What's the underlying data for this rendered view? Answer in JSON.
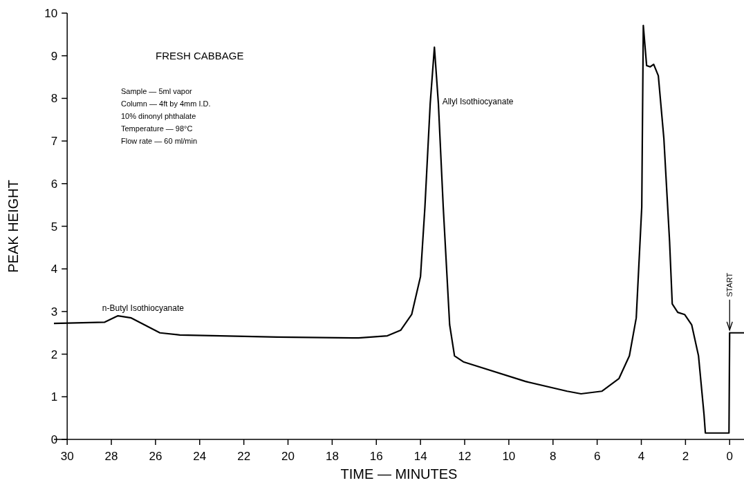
{
  "chart_data": {
    "type": "line",
    "title": "FRESH CABBAGE",
    "xlabel": "TIME — MINUTES",
    "ylabel": "PEAK HEIGHT",
    "annotations": [
      "Sample — 5ml vapor",
      "Column — 4ft by 4mm I.D.",
      "10% dinonyl phthalate",
      "Temperature — 98°C",
      "Flow rate — 60 ml/min",
      {
        "text": "n-Butyl Isothiocyanate",
        "x": 28.6,
        "y": 2.75
      },
      {
        "text": "Allyl Isothiocyanate",
        "x": 13.2,
        "y": 7.6
      },
      {
        "text": "START",
        "x": 0,
        "y": 2.5
      }
    ],
    "x": [
      30.6,
      28.3,
      27.7,
      27.1,
      25.8,
      24.9,
      20.5,
      16.8,
      15.5,
      14.9,
      14.4,
      14.0,
      13.8,
      13.56,
      13.37,
      13.19,
      12.97,
      12.68,
      12.46,
      12.06,
      9.24,
      7.36,
      6.73,
      5.79,
      5.01,
      4.54,
      4.23,
      3.98,
      3.91,
      3.76,
      3.6,
      3.44,
      3.23,
      2.98,
      2.72,
      2.6,
      2.35,
      2.04,
      1.72,
      1.41,
      1.16,
      1.1,
      0.03,
      0.0,
      -0.65
    ],
    "series": [
      {
        "color": "#000000",
        "values": [
          2.72,
          2.75,
          2.9,
          2.85,
          2.5,
          2.45,
          2.4,
          2.38,
          2.43,
          2.56,
          2.93,
          3.82,
          5.45,
          7.88,
          9.2,
          7.88,
          5.45,
          2.69,
          1.96,
          1.82,
          1.36,
          1.13,
          1.07,
          1.13,
          1.43,
          1.96,
          2.85,
          5.45,
          9.71,
          8.77,
          8.74,
          8.8,
          8.53,
          7.07,
          4.64,
          3.18,
          2.98,
          2.93,
          2.69,
          1.96,
          0.58,
          0.15,
          0.15,
          2.5,
          2.5
        ]
      }
    ],
    "xlim": [
      30.6,
      -0.65
    ],
    "ylim": [
      0,
      10
    ],
    "xticks": [
      30,
      28,
      26,
      24,
      22,
      20,
      18,
      16,
      14,
      12,
      10,
      8,
      6,
      4,
      2,
      0
    ],
    "yticks": [
      0,
      1,
      2,
      3,
      4,
      5,
      6,
      7,
      8,
      9,
      10
    ],
    "grid": false,
    "marker": "none",
    "line_style": "solid"
  }
}
